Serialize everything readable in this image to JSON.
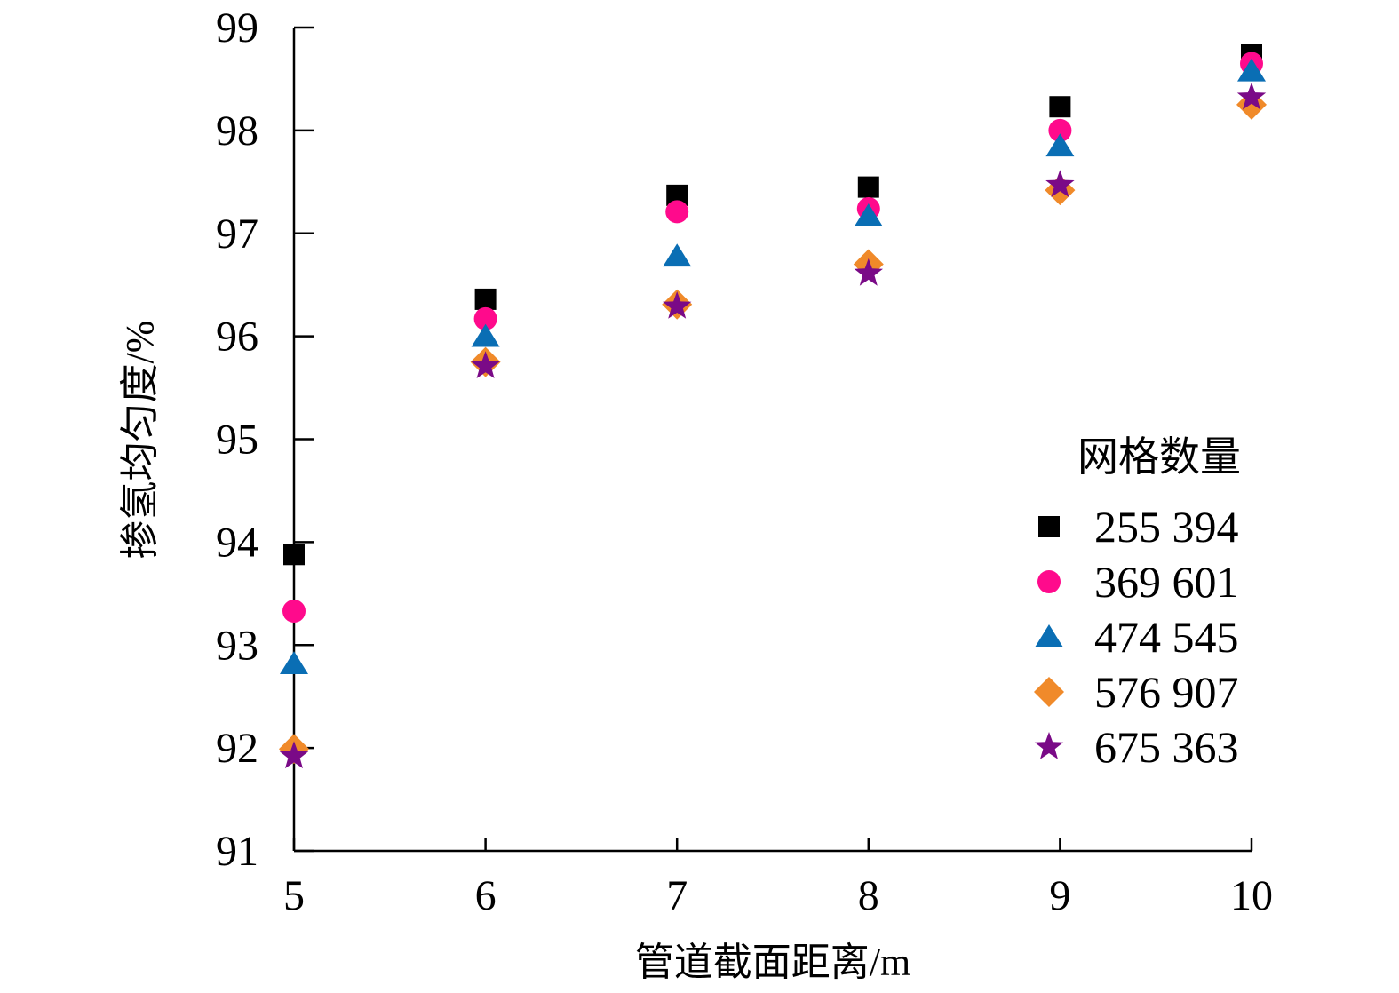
{
  "chart_data": {
    "type": "scatter",
    "title": "",
    "xlabel": "管道截面距离/m",
    "ylabel": "掺氢均匀度/%",
    "xlim": [
      5,
      10
    ],
    "ylim": [
      91,
      99
    ],
    "xticks": [
      5,
      6,
      7,
      8,
      9,
      10
    ],
    "yticks": [
      91,
      92,
      93,
      94,
      95,
      96,
      97,
      98,
      99
    ],
    "x": [
      5,
      6,
      7,
      8,
      9,
      10
    ],
    "legend_title": "网格数量",
    "legend_position": "right",
    "grid": false,
    "series": [
      {
        "name": "255 394",
        "marker": "square",
        "color": "#000000",
        "values": [
          93.88,
          96.36,
          97.37,
          97.45,
          98.23,
          98.74
        ]
      },
      {
        "name": "369 601",
        "marker": "circle",
        "color": "#FF0A8C",
        "values": [
          93.33,
          96.17,
          97.21,
          97.24,
          98.0,
          98.65
        ]
      },
      {
        "name": "474 545",
        "marker": "triangle",
        "color": "#0A6EB4",
        "values": [
          92.82,
          96.0,
          96.78,
          97.17,
          97.85,
          98.58
        ]
      },
      {
        "name": "576 907",
        "marker": "diamond",
        "color": "#F08A2A",
        "values": [
          91.99,
          95.75,
          96.31,
          96.7,
          97.42,
          98.25
        ]
      },
      {
        "name": "675 363",
        "marker": "star",
        "color": "#7A0A87",
        "values": [
          91.92,
          95.71,
          96.29,
          96.61,
          97.47,
          98.32
        ]
      }
    ]
  }
}
